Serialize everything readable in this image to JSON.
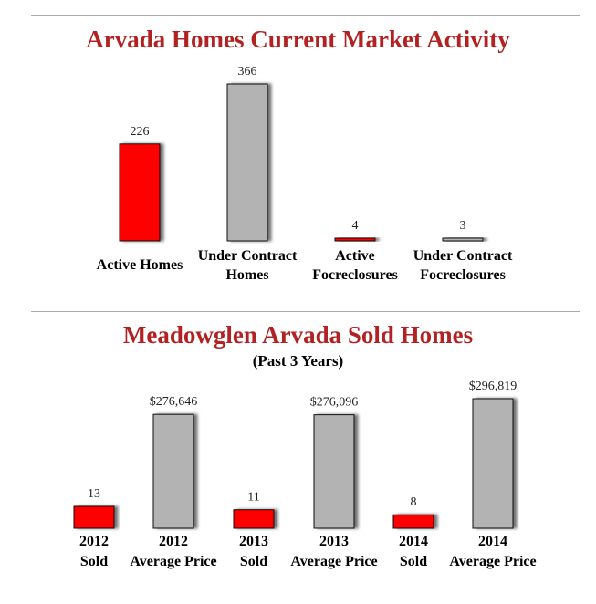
{
  "chart_data": [
    {
      "type": "bar",
      "title": "Arvada Homes Current Market Activity",
      "categories": [
        "Active Homes",
        "Under Contract Homes",
        "Active Focreclosures",
        "Under Contract Focreclosures"
      ],
      "category_lines": [
        [
          "Active Homes"
        ],
        [
          "Under Contract",
          "Homes"
        ],
        [
          "Active",
          "Focreclosures"
        ],
        [
          "Under Contract",
          "Focreclosures"
        ]
      ],
      "values": [
        226,
        366,
        4,
        3
      ],
      "value_labels": [
        "226",
        "366",
        "4",
        "3"
      ],
      "colors": [
        "#ff0000",
        "#b3b3b3",
        "#ff0000",
        "#b3b3b3"
      ],
      "xlabel": "",
      "ylabel": ""
    },
    {
      "type": "bar",
      "title": "Meadowglen Arvada Sold Homes",
      "subtitle": "(Past 3 Years)",
      "categories": [
        "2012 Sold",
        "2012 Average Price",
        "2013 Sold",
        "2013 Average Price",
        "2014 Sold",
        "2014 Average Price"
      ],
      "category_lines": [
        [
          "2012",
          "Sold"
        ],
        [
          "2012",
          "Average Price"
        ],
        [
          "2013",
          "Sold"
        ],
        [
          "2013",
          "Average Price"
        ],
        [
          "2014",
          "Sold"
        ],
        [
          "2014",
          "Average Price"
        ]
      ],
      "values": [
        13,
        276646,
        11,
        276096,
        8,
        296819
      ],
      "value_labels": [
        "13",
        "$276,646",
        "11",
        "$276,096",
        "8",
        "$296,819"
      ],
      "colors": [
        "#ff0000",
        "#b3b3b3",
        "#ff0000",
        "#b3b3b3",
        "#ff0000",
        "#b3b3b3"
      ],
      "xlabel": "",
      "ylabel": ""
    }
  ]
}
